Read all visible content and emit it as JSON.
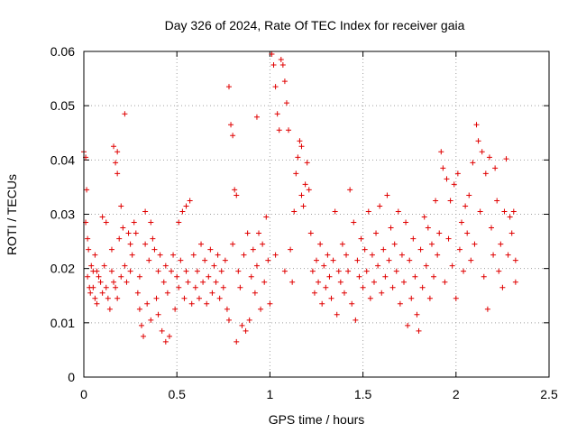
{
  "chart_data": {
    "type": "scatter",
    "title": "Day 326 of 2024, Rate Of TEC Index for receiver gaia",
    "xlabel": "GPS time / hours",
    "ylabel": "ROTI / TECUs",
    "xlim": [
      0,
      2.5
    ],
    "ylim": [
      0,
      0.06
    ],
    "x_ticks": [
      0,
      0.5,
      1,
      1.5,
      2,
      2.5
    ],
    "x_tick_labels": [
      "0",
      "0.5",
      "1",
      "1.5",
      "2",
      "2.5"
    ],
    "y_ticks": [
      0,
      0.01,
      0.02,
      0.03,
      0.04,
      0.05,
      0.06
    ],
    "y_tick_labels": [
      "0",
      "0.01",
      "0.02",
      "0.03",
      "0.04",
      "0.05",
      "0.06"
    ],
    "grid": true,
    "marker": "+",
    "color": "#e00000",
    "points": [
      [
        0.0,
        0.0415
      ],
      [
        0.01,
        0.0405
      ],
      [
        0.01,
        0.0285
      ],
      [
        0.015,
        0.0345
      ],
      [
        0.02,
        0.0255
      ],
      [
        0.02,
        0.0185
      ],
      [
        0.025,
        0.0235
      ],
      [
        0.03,
        0.0165
      ],
      [
        0.035,
        0.0155
      ],
      [
        0.04,
        0.0205
      ],
      [
        0.05,
        0.0195
      ],
      [
        0.05,
        0.0165
      ],
      [
        0.06,
        0.0225
      ],
      [
        0.06,
        0.0145
      ],
      [
        0.07,
        0.0135
      ],
      [
        0.07,
        0.0195
      ],
      [
        0.08,
        0.0185
      ],
      [
        0.09,
        0.0175
      ],
      [
        0.1,
        0.0295
      ],
      [
        0.1,
        0.0155
      ],
      [
        0.11,
        0.0205
      ],
      [
        0.12,
        0.0165
      ],
      [
        0.12,
        0.0285
      ],
      [
        0.13,
        0.0145
      ],
      [
        0.14,
        0.0125
      ],
      [
        0.15,
        0.0195
      ],
      [
        0.15,
        0.0235
      ],
      [
        0.16,
        0.0175
      ],
      [
        0.16,
        0.0425
      ],
      [
        0.17,
        0.0395
      ],
      [
        0.17,
        0.0165
      ],
      [
        0.18,
        0.0375
      ],
      [
        0.18,
        0.0145
      ],
      [
        0.18,
        0.0415
      ],
      [
        0.19,
        0.0255
      ],
      [
        0.2,
        0.0185
      ],
      [
        0.2,
        0.0315
      ],
      [
        0.21,
        0.0275
      ],
      [
        0.22,
        0.0485
      ],
      [
        0.22,
        0.0205
      ],
      [
        0.23,
        0.0175
      ],
      [
        0.24,
        0.0265
      ],
      [
        0.25,
        0.0245
      ],
      [
        0.25,
        0.0195
      ],
      [
        0.26,
        0.0225
      ],
      [
        0.27,
        0.0285
      ],
      [
        0.28,
        0.0265
      ],
      [
        0.29,
        0.0155
      ],
      [
        0.3,
        0.0125
      ],
      [
        0.3,
        0.0185
      ],
      [
        0.31,
        0.0095
      ],
      [
        0.32,
        0.0075
      ],
      [
        0.33,
        0.0245
      ],
      [
        0.33,
        0.0305
      ],
      [
        0.34,
        0.0135
      ],
      [
        0.35,
        0.0215
      ],
      [
        0.36,
        0.0105
      ],
      [
        0.36,
        0.0285
      ],
      [
        0.37,
        0.0255
      ],
      [
        0.38,
        0.0235
      ],
      [
        0.39,
        0.0145
      ],
      [
        0.4,
        0.0115
      ],
      [
        0.4,
        0.0195
      ],
      [
        0.41,
        0.0225
      ],
      [
        0.42,
        0.0085
      ],
      [
        0.43,
        0.0175
      ],
      [
        0.44,
        0.0065
      ],
      [
        0.44,
        0.0205
      ],
      [
        0.45,
        0.0155
      ],
      [
        0.46,
        0.0075
      ],
      [
        0.47,
        0.0195
      ],
      [
        0.48,
        0.0225
      ],
      [
        0.49,
        0.0125
      ],
      [
        0.5,
        0.0185
      ],
      [
        0.51,
        0.0165
      ],
      [
        0.51,
        0.0285
      ],
      [
        0.52,
        0.0215
      ],
      [
        0.53,
        0.0305
      ],
      [
        0.54,
        0.0145
      ],
      [
        0.55,
        0.0315
      ],
      [
        0.55,
        0.0195
      ],
      [
        0.56,
        0.0175
      ],
      [
        0.57,
        0.0325
      ],
      [
        0.58,
        0.0135
      ],
      [
        0.59,
        0.0225
      ],
      [
        0.6,
        0.0165
      ],
      [
        0.61,
        0.0195
      ],
      [
        0.62,
        0.0145
      ],
      [
        0.63,
        0.0245
      ],
      [
        0.64,
        0.0175
      ],
      [
        0.65,
        0.0215
      ],
      [
        0.66,
        0.0135
      ],
      [
        0.67,
        0.0185
      ],
      [
        0.68,
        0.0235
      ],
      [
        0.69,
        0.0155
      ],
      [
        0.7,
        0.0205
      ],
      [
        0.71,
        0.0175
      ],
      [
        0.72,
        0.0225
      ],
      [
        0.73,
        0.0145
      ],
      [
        0.74,
        0.0195
      ],
      [
        0.75,
        0.0165
      ],
      [
        0.76,
        0.0215
      ],
      [
        0.77,
        0.0125
      ],
      [
        0.78,
        0.0105
      ],
      [
        0.78,
        0.0535
      ],
      [
        0.79,
        0.0465
      ],
      [
        0.8,
        0.0445
      ],
      [
        0.8,
        0.0245
      ],
      [
        0.81,
        0.0345
      ],
      [
        0.82,
        0.0335
      ],
      [
        0.82,
        0.0065
      ],
      [
        0.83,
        0.0195
      ],
      [
        0.84,
        0.0165
      ],
      [
        0.85,
        0.0095
      ],
      [
        0.86,
        0.0225
      ],
      [
        0.87,
        0.0085
      ],
      [
        0.88,
        0.0265
      ],
      [
        0.89,
        0.0105
      ],
      [
        0.9,
        0.0185
      ],
      [
        0.91,
        0.0235
      ],
      [
        0.92,
        0.0155
      ],
      [
        0.93,
        0.0479
      ],
      [
        0.93,
        0.0205
      ],
      [
        0.94,
        0.0265
      ],
      [
        0.95,
        0.0125
      ],
      [
        0.96,
        0.0245
      ],
      [
        0.97,
        0.0175
      ],
      [
        0.98,
        0.0295
      ],
      [
        0.99,
        0.0215
      ],
      [
        1.0,
        0.0135
      ],
      [
        1.01,
        0.0595
      ],
      [
        1.02,
        0.0575
      ],
      [
        1.03,
        0.0535
      ],
      [
        1.03,
        0.0225
      ],
      [
        1.04,
        0.0485
      ],
      [
        1.05,
        0.0455
      ],
      [
        1.06,
        0.0585
      ],
      [
        1.07,
        0.0575
      ],
      [
        1.08,
        0.0545
      ],
      [
        1.08,
        0.0195
      ],
      [
        1.09,
        0.0505
      ],
      [
        1.1,
        0.0455
      ],
      [
        1.11,
        0.0235
      ],
      [
        1.12,
        0.0175
      ],
      [
        1.13,
        0.0305
      ],
      [
        1.14,
        0.0375
      ],
      [
        1.15,
        0.0405
      ],
      [
        1.16,
        0.0435
      ],
      [
        1.17,
        0.0425
      ],
      [
        1.17,
        0.0335
      ],
      [
        1.18,
        0.0315
      ],
      [
        1.19,
        0.0355
      ],
      [
        1.2,
        0.0395
      ],
      [
        1.21,
        0.0345
      ],
      [
        1.22,
        0.0265
      ],
      [
        1.23,
        0.0195
      ],
      [
        1.24,
        0.0155
      ],
      [
        1.25,
        0.0215
      ],
      [
        1.26,
        0.0175
      ],
      [
        1.27,
        0.0245
      ],
      [
        1.28,
        0.0135
      ],
      [
        1.29,
        0.0205
      ],
      [
        1.3,
        0.0165
      ],
      [
        1.31,
        0.0225
      ],
      [
        1.32,
        0.0185
      ],
      [
        1.33,
        0.0145
      ],
      [
        1.34,
        0.0215
      ],
      [
        1.35,
        0.0305
      ],
      [
        1.36,
        0.0115
      ],
      [
        1.37,
        0.0195
      ],
      [
        1.38,
        0.0175
      ],
      [
        1.39,
        0.0245
      ],
      [
        1.4,
        0.0155
      ],
      [
        1.41,
        0.0225
      ],
      [
        1.42,
        0.0195
      ],
      [
        1.43,
        0.0345
      ],
      [
        1.44,
        0.0135
      ],
      [
        1.45,
        0.0285
      ],
      [
        1.46,
        0.0105
      ],
      [
        1.47,
        0.0215
      ],
      [
        1.48,
        0.0185
      ],
      [
        1.49,
        0.0255
      ],
      [
        1.5,
        0.0165
      ],
      [
        1.51,
        0.0235
      ],
      [
        1.52,
        0.0195
      ],
      [
        1.53,
        0.0305
      ],
      [
        1.54,
        0.0145
      ],
      [
        1.55,
        0.0225
      ],
      [
        1.56,
        0.0175
      ],
      [
        1.57,
        0.0265
      ],
      [
        1.58,
        0.0205
      ],
      [
        1.59,
        0.0315
      ],
      [
        1.6,
        0.0155
      ],
      [
        1.61,
        0.0235
      ],
      [
        1.62,
        0.0185
      ],
      [
        1.63,
        0.0335
      ],
      [
        1.64,
        0.0215
      ],
      [
        1.65,
        0.0275
      ],
      [
        1.66,
        0.0165
      ],
      [
        1.67,
        0.0245
      ],
      [
        1.68,
        0.0195
      ],
      [
        1.69,
        0.0305
      ],
      [
        1.7,
        0.0135
      ],
      [
        1.71,
        0.0225
      ],
      [
        1.72,
        0.0175
      ],
      [
        1.73,
        0.0285
      ],
      [
        1.74,
        0.0095
      ],
      [
        1.75,
        0.0215
      ],
      [
        1.76,
        0.0145
      ],
      [
        1.77,
        0.0255
      ],
      [
        1.78,
        0.0185
      ],
      [
        1.79,
        0.0115
      ],
      [
        1.8,
        0.0085
      ],
      [
        1.81,
        0.0235
      ],
      [
        1.82,
        0.0165
      ],
      [
        1.83,
        0.0295
      ],
      [
        1.84,
        0.0205
      ],
      [
        1.85,
        0.0275
      ],
      [
        1.86,
        0.0145
      ],
      [
        1.87,
        0.0245
      ],
      [
        1.88,
        0.0185
      ],
      [
        1.89,
        0.0325
      ],
      [
        1.9,
        0.0225
      ],
      [
        1.91,
        0.0265
      ],
      [
        1.92,
        0.0415
      ],
      [
        1.93,
        0.0385
      ],
      [
        1.94,
        0.0175
      ],
      [
        1.95,
        0.0365
      ],
      [
        1.96,
        0.0255
      ],
      [
        1.97,
        0.0325
      ],
      [
        1.98,
        0.0205
      ],
      [
        1.99,
        0.0355
      ],
      [
        2.0,
        0.0145
      ],
      [
        2.01,
        0.0375
      ],
      [
        2.02,
        0.0235
      ],
      [
        2.03,
        0.0285
      ],
      [
        2.04,
        0.0195
      ],
      [
        2.05,
        0.0315
      ],
      [
        2.06,
        0.0265
      ],
      [
        2.07,
        0.0335
      ],
      [
        2.08,
        0.0215
      ],
      [
        2.09,
        0.0395
      ],
      [
        2.1,
        0.0245
      ],
      [
        2.11,
        0.0465
      ],
      [
        2.12,
        0.0435
      ],
      [
        2.13,
        0.0305
      ],
      [
        2.14,
        0.0415
      ],
      [
        2.15,
        0.0185
      ],
      [
        2.16,
        0.0375
      ],
      [
        2.17,
        0.0125
      ],
      [
        2.18,
        0.0405
      ],
      [
        2.19,
        0.0275
      ],
      [
        2.2,
        0.0225
      ],
      [
        2.21,
        0.0385
      ],
      [
        2.22,
        0.0325
      ],
      [
        2.23,
        0.0195
      ],
      [
        2.24,
        0.0245
      ],
      [
        2.25,
        0.0165
      ],
      [
        2.26,
        0.0305
      ],
      [
        2.27,
        0.0402
      ],
      [
        2.28,
        0.0225
      ],
      [
        2.29,
        0.0295
      ],
      [
        2.3,
        0.0265
      ],
      [
        2.31,
        0.0305
      ],
      [
        2.32,
        0.0215
      ],
      [
        2.32,
        0.0175
      ]
    ]
  }
}
